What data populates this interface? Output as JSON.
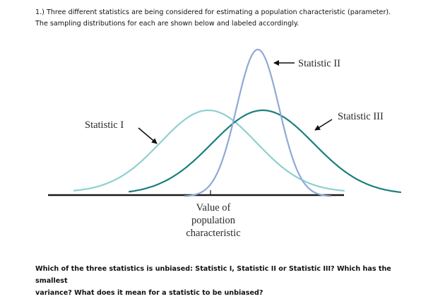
{
  "intro": {
    "line1": "1.) Three different statistics are being considered for estimating a population characteristic (parameter).",
    "line2": "The sampling distributions for each are shown below and labeled accordingly."
  },
  "figure": {
    "labels": {
      "stat1": "Statistic I",
      "stat2": "Statistic II",
      "stat3": "Statistic III",
      "value_line1": "Value of",
      "value_line2": "population",
      "value_line3": "characteristic"
    },
    "colors": {
      "stat1": "#8fd0cf",
      "stat2": "#8fa9d6",
      "stat3": "#1c7f7e",
      "axis": "#1a1a1a"
    }
  },
  "question": {
    "line1": "Which of the three statistics is unbiased: Statistic I, Statistic II or Statistic III? Which has the smallest",
    "line2": "variance? What does it mean for a statistic to be unbiased?"
  }
}
